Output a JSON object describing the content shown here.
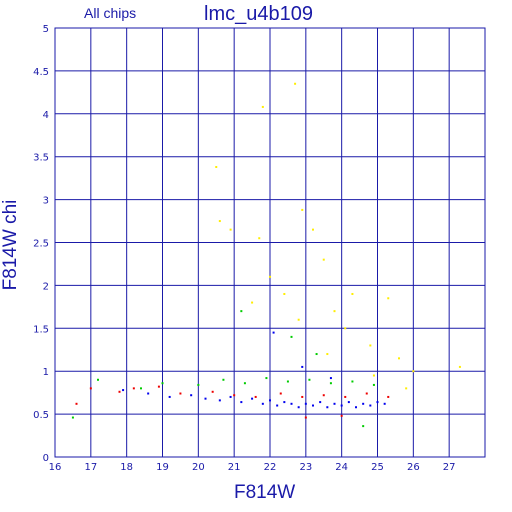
{
  "chart_data": {
    "type": "scatter",
    "title_left": "All chips",
    "title": "lmc_u4b109",
    "xlabel": "F814W",
    "ylabel": "F814W chi",
    "xlim": [
      16,
      28
    ],
    "ylim": [
      0,
      5
    ],
    "xticks": [
      "16",
      "17",
      "18",
      "19",
      "20",
      "21",
      "22",
      "23",
      "24",
      "25",
      "26",
      "27"
    ],
    "yticks": [
      "0",
      "0.5",
      "1",
      "1.5",
      "2",
      "2.5",
      "3",
      "3.5",
      "4",
      "4.5",
      "5"
    ],
    "grid": true,
    "series": [
      {
        "color": "#0000ee",
        "points": [
          [
            17.9,
            0.78
          ],
          [
            18.6,
            0.74
          ],
          [
            19.2,
            0.7
          ],
          [
            19.8,
            0.72
          ],
          [
            20.2,
            0.68
          ],
          [
            20.6,
            0.66
          ],
          [
            20.9,
            0.7
          ],
          [
            21.2,
            0.64
          ],
          [
            21.5,
            0.68
          ],
          [
            21.8,
            0.62
          ],
          [
            22.0,
            0.66
          ],
          [
            22.2,
            0.6
          ],
          [
            22.4,
            0.64
          ],
          [
            22.6,
            0.62
          ],
          [
            22.8,
            0.58
          ],
          [
            23.0,
            0.62
          ],
          [
            23.2,
            0.6
          ],
          [
            23.4,
            0.64
          ],
          [
            23.6,
            0.58
          ],
          [
            23.8,
            0.62
          ],
          [
            24.0,
            0.6
          ],
          [
            24.2,
            0.64
          ],
          [
            24.4,
            0.58
          ],
          [
            24.6,
            0.62
          ],
          [
            24.8,
            0.6
          ],
          [
            25.0,
            0.64
          ],
          [
            25.2,
            0.62
          ],
          [
            22.1,
            1.45
          ],
          [
            22.9,
            1.05
          ],
          [
            23.7,
            0.92
          ]
        ]
      },
      {
        "color": "#ee0000",
        "points": [
          [
            16.6,
            0.62
          ],
          [
            17.0,
            0.8
          ],
          [
            17.8,
            0.76
          ],
          [
            18.2,
            0.8
          ],
          [
            18.9,
            0.82
          ],
          [
            19.5,
            0.74
          ],
          [
            20.4,
            0.76
          ],
          [
            21.0,
            0.72
          ],
          [
            21.6,
            0.7
          ],
          [
            22.3,
            0.74
          ],
          [
            22.9,
            0.7
          ],
          [
            23.5,
            0.72
          ],
          [
            24.1,
            0.7
          ],
          [
            24.7,
            0.74
          ],
          [
            25.3,
            0.7
          ],
          [
            23.0,
            0.46
          ],
          [
            24.0,
            0.48
          ]
        ]
      },
      {
        "color": "#00cc00",
        "points": [
          [
            16.5,
            0.46
          ],
          [
            17.2,
            0.9
          ],
          [
            18.4,
            0.8
          ],
          [
            19.0,
            0.86
          ],
          [
            20.0,
            0.84
          ],
          [
            20.7,
            0.9
          ],
          [
            21.3,
            0.86
          ],
          [
            21.9,
            0.92
          ],
          [
            22.5,
            0.88
          ],
          [
            23.1,
            0.9
          ],
          [
            23.7,
            0.86
          ],
          [
            24.3,
            0.88
          ],
          [
            24.9,
            0.84
          ],
          [
            21.2,
            1.7
          ],
          [
            22.6,
            1.4
          ],
          [
            23.3,
            1.2
          ],
          [
            24.6,
            0.36
          ]
        ]
      },
      {
        "color": "#ffee00",
        "points": [
          [
            20.5,
            3.38
          ],
          [
            20.6,
            2.75
          ],
          [
            20.9,
            2.65
          ],
          [
            21.7,
            2.55
          ],
          [
            22.0,
            2.1
          ],
          [
            22.7,
            4.35
          ],
          [
            22.9,
            2.88
          ],
          [
            23.2,
            2.65
          ],
          [
            23.5,
            2.3
          ],
          [
            22.4,
            1.9
          ],
          [
            21.5,
            1.8
          ],
          [
            23.8,
            1.7
          ],
          [
            24.3,
            1.9
          ],
          [
            24.8,
            1.3
          ],
          [
            25.6,
            1.15
          ],
          [
            26.0,
            1.0
          ],
          [
            27.3,
            1.05
          ],
          [
            25.3,
            1.85
          ],
          [
            24.1,
            1.5
          ],
          [
            22.8,
            1.6
          ],
          [
            23.6,
            1.2
          ],
          [
            24.9,
            0.95
          ],
          [
            25.8,
            0.8
          ],
          [
            21.8,
            4.08
          ]
        ]
      }
    ]
  }
}
